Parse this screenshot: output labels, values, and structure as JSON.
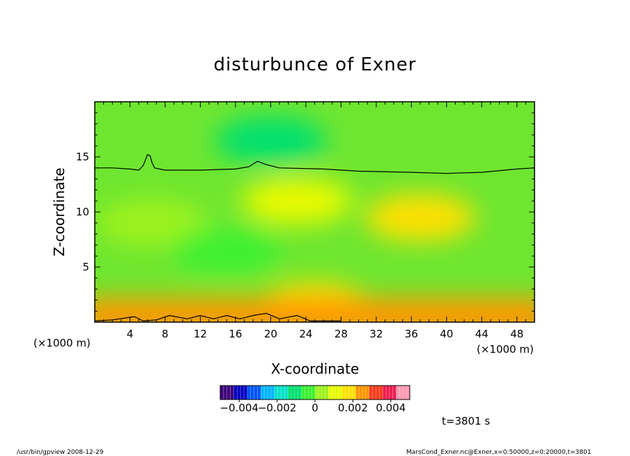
{
  "chart_data": {
    "type": "heatmap",
    "title": "disturbunce of Exner",
    "xlabel": "X-coordinate",
    "ylabel": "Z-coordinate",
    "x_unit": "(×1000 m)",
    "y_unit": "(×1000 m)",
    "xlim": [
      0,
      50
    ],
    "ylim": [
      0,
      20
    ],
    "x_ticks": [
      "4",
      "8",
      "12",
      "16",
      "20",
      "24",
      "28",
      "32",
      "36",
      "40",
      "44",
      "48"
    ],
    "x_tick_values": [
      4,
      8,
      12,
      16,
      20,
      24,
      28,
      32,
      36,
      40,
      44,
      48
    ],
    "y_ticks": [
      "5",
      "10",
      "15"
    ],
    "y_tick_values": [
      5,
      10,
      15
    ],
    "colorbar": {
      "min": -0.005,
      "max": 0.005,
      "tick_labels": [
        "−0.004",
        "−0.002",
        "0",
        "0.002",
        "0.004"
      ],
      "tick_values": [
        -0.004,
        -0.002,
        0,
        0.002,
        0.004
      ]
    },
    "zero_contour_upper": [
      [
        0,
        14.0
      ],
      [
        2,
        14.0
      ],
      [
        4,
        13.9
      ],
      [
        5,
        13.8
      ],
      [
        5.5,
        14.2
      ],
      [
        6,
        15.2
      ],
      [
        6.3,
        15.1
      ],
      [
        6.5,
        14.5
      ],
      [
        6.8,
        14.0
      ],
      [
        8,
        13.8
      ],
      [
        12,
        13.8
      ],
      [
        16,
        13.9
      ],
      [
        17.5,
        14.1
      ],
      [
        18.5,
        14.6
      ],
      [
        19.5,
        14.3
      ],
      [
        21,
        14.0
      ],
      [
        26,
        13.9
      ],
      [
        30,
        13.7
      ],
      [
        36,
        13.6
      ],
      [
        40,
        13.5
      ],
      [
        44,
        13.6
      ],
      [
        48,
        13.9
      ],
      [
        50,
        14.0
      ]
    ],
    "zero_contour_lower": [
      [
        0,
        0.1
      ],
      [
        2,
        0.2
      ],
      [
        4.5,
        0.5
      ],
      [
        5.5,
        0.1
      ],
      [
        7,
        0.2
      ],
      [
        8.5,
        0.6
      ],
      [
        10.5,
        0.3
      ],
      [
        12,
        0.6
      ],
      [
        13.5,
        0.3
      ],
      [
        15,
        0.6
      ],
      [
        16.5,
        0.3
      ],
      [
        18,
        0.6
      ],
      [
        19.5,
        0.8
      ],
      [
        21,
        0.3
      ],
      [
        23,
        0.6
      ],
      [
        24.5,
        0.1
      ],
      [
        26,
        0.1
      ],
      [
        28,
        0.1
      ]
    ],
    "anomaly_regions": [
      {
        "x": 37,
        "z": 9.5,
        "value": 0.0018
      },
      {
        "x": 6.5,
        "z": 9.0,
        "value": 0.0007
      },
      {
        "x": 23,
        "z": 11.0,
        "value": 0.0009
      },
      {
        "x": 25,
        "z": 1.5,
        "value": 0.0015
      },
      {
        "x": 20,
        "z": 16.5,
        "value": -0.0012
      },
      {
        "x": 15,
        "z": 6.5,
        "value": -0.0005
      }
    ],
    "grid": false
  },
  "annotations": {
    "time_label": "t=3801 s",
    "footer_left": "/usr/bin/gpview   2008-12-29",
    "footer_right": "MarsCond_Exner.nc@Exner,x=0:50000,z=0:20000,t=3801"
  },
  "colors": {
    "palette": [
      "#3d007a",
      "#0000c0",
      "#0055ff",
      "#00b4ff",
      "#00e0c8",
      "#00e070",
      "#3cf032",
      "#9ef21e",
      "#e8fa00",
      "#ffe000",
      "#ff9600",
      "#ff3c1e",
      "#f01e50",
      "#ff9ab4"
    ]
  }
}
